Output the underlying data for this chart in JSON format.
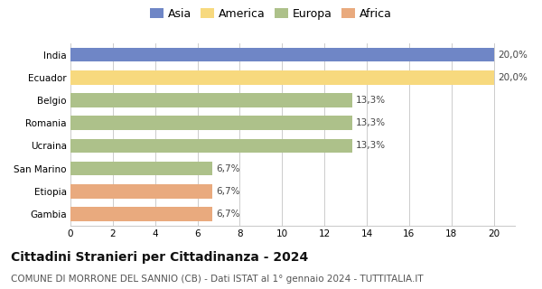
{
  "categories": [
    "India",
    "Ecuador",
    "Belgio",
    "Romania",
    "Ucraina",
    "San Marino",
    "Etiopia",
    "Gambia"
  ],
  "values": [
    20.0,
    20.0,
    13.3,
    13.3,
    13.3,
    6.7,
    6.7,
    6.7
  ],
  "labels": [
    "20,0%",
    "20,0%",
    "13,3%",
    "13,3%",
    "13,3%",
    "6,7%",
    "6,7%",
    "6,7%"
  ],
  "colors": [
    "#6f86c6",
    "#f7d97e",
    "#adc18a",
    "#adc18a",
    "#adc18a",
    "#adc18a",
    "#e9aa7e",
    "#e9aa7e"
  ],
  "legend_entries": [
    {
      "label": "Asia",
      "color": "#6f86c6"
    },
    {
      "label": "America",
      "color": "#f7d97e"
    },
    {
      "label": "Europa",
      "color": "#adc18a"
    },
    {
      "label": "Africa",
      "color": "#e9aa7e"
    }
  ],
  "xlim": [
    0,
    21
  ],
  "xticks": [
    0,
    2,
    4,
    6,
    8,
    10,
    12,
    14,
    16,
    18,
    20
  ],
  "title": "Cittadini Stranieri per Cittadinanza - 2024",
  "subtitle": "COMUNE DI MORRONE DEL SANNIO (CB) - Dati ISTAT al 1° gennaio 2024 - TUTTITALIA.IT",
  "title_fontsize": 10,
  "subtitle_fontsize": 7.5,
  "label_fontsize": 7.5,
  "tick_fontsize": 7.5,
  "background_color": "#ffffff",
  "grid_color": "#cccccc"
}
